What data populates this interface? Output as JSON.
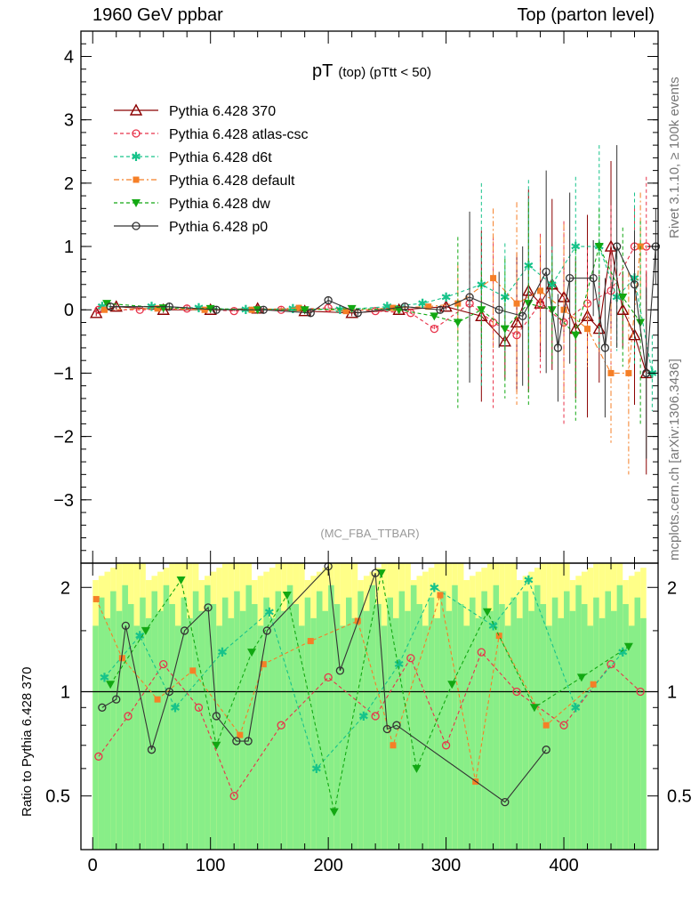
{
  "header": {
    "left": "1960 GeV ppbar",
    "right": "Top (parton level)"
  },
  "side_labels": {
    "top": "Rivet 3.1.10, ≥ 100k events",
    "bottom": "mcplots.cern.ch [arXiv:1306.3436]"
  },
  "colors": {
    "p370": "#8b0000",
    "atlas": "#e8334a",
    "d6t": "#17c38a",
    "default": "#f57f27",
    "dw": "#12a812",
    "p0": "#333333",
    "band_outer": "#ffff88",
    "band_inner": "#88ee88"
  },
  "chart_data": [
    {
      "type": "scatter",
      "title_main": "pT",
      "title_sub": "(top) (pTtt < 50)",
      "watermark": "(MC_FBA_TTBAR)",
      "xlim": [
        -10,
        480
      ],
      "ylim": [
        -4,
        4.4
      ],
      "yticks": [
        -3,
        -2,
        -1,
        0,
        1,
        2,
        3,
        4
      ],
      "legend_position": "top-left",
      "series": [
        {
          "name": "Pythia 6.428 370",
          "key": "p370",
          "marker": "triangle-open",
          "dash": "none",
          "x": [
            3,
            20,
            60,
            100,
            140,
            180,
            220,
            260,
            300,
            330,
            350,
            360,
            370,
            380,
            390,
            400,
            410,
            420,
            430,
            440,
            450,
            460,
            470
          ],
          "y": [
            -0.05,
            0.05,
            0.0,
            0.0,
            0.02,
            -0.02,
            -0.05,
            0.0,
            0.05,
            -0.1,
            -0.5,
            -0.2,
            0.3,
            0.1,
            0.4,
            0.2,
            -0.3,
            -0.1,
            -0.3,
            1.0,
            0.0,
            -0.4,
            -1.0
          ]
        },
        {
          "name": "Pythia 6.428 atlas-csc",
          "key": "atlas",
          "marker": "circle-open",
          "dash": "4,3",
          "x": [
            5,
            40,
            80,
            120,
            160,
            200,
            240,
            270,
            290,
            320,
            340,
            360,
            380,
            400,
            420,
            440,
            460,
            470
          ],
          "y": [
            0.0,
            0.0,
            0.02,
            -0.02,
            0.0,
            0.03,
            -0.02,
            -0.05,
            -0.3,
            0.1,
            -0.2,
            -0.4,
            0.1,
            -0.2,
            0.1,
            0.3,
            1.0,
            1.0
          ]
        },
        {
          "name": "Pythia 6.428 d6t",
          "key": "d6t",
          "marker": "star",
          "dash": "4,3",
          "x": [
            8,
            50,
            90,
            130,
            170,
            210,
            250,
            280,
            300,
            330,
            350,
            370,
            390,
            410,
            430,
            445,
            460,
            475
          ],
          "y": [
            0.05,
            0.05,
            0.03,
            0.0,
            0.02,
            0.0,
            0.05,
            0.1,
            0.2,
            0.4,
            0.2,
            0.7,
            0.4,
            1.0,
            1.0,
            0.2,
            0.5,
            -1.0
          ]
        },
        {
          "name": "Pythia 6.428 default",
          "key": "default",
          "marker": "square",
          "dash": "6,3,2,3",
          "x": [
            10,
            55,
            95,
            135,
            175,
            215,
            255,
            285,
            310,
            340,
            360,
            380,
            400,
            420,
            440,
            455,
            465
          ],
          "y": [
            0.0,
            0.02,
            0.0,
            0.0,
            0.03,
            -0.02,
            0.03,
            0.05,
            0.1,
            0.5,
            0.1,
            0.3,
            0.0,
            -0.3,
            -1.0,
            -1.0,
            1.0
          ]
        },
        {
          "name": "Pythia 6.428 dw",
          "key": "dw",
          "marker": "triangle-down",
          "dash": "4,3",
          "x": [
            12,
            60,
            100,
            140,
            180,
            220,
            260,
            290,
            310,
            330,
            350,
            370,
            390,
            410,
            430,
            450,
            465
          ],
          "y": [
            0.1,
            0.03,
            0.02,
            0.0,
            0.0,
            0.02,
            0.0,
            -0.1,
            -0.2,
            0.0,
            -0.3,
            0.1,
            0.0,
            -0.4,
            1.0,
            0.2,
            -0.2
          ]
        },
        {
          "name": "Pythia 6.428 p0",
          "key": "p0",
          "marker": "circle-open",
          "dash": "none",
          "x": [
            15,
            65,
            105,
            145,
            185,
            200,
            225,
            265,
            295,
            320,
            345,
            365,
            385,
            395,
            405,
            425,
            435,
            445,
            460,
            470,
            478
          ],
          "y": [
            0.05,
            0.05,
            0.0,
            0.0,
            -0.05,
            0.15,
            -0.05,
            0.05,
            0.0,
            0.2,
            0.0,
            -0.1,
            0.6,
            -0.6,
            0.5,
            0.5,
            -0.6,
            1.0,
            0.4,
            -1.0,
            1.0
          ]
        }
      ]
    },
    {
      "type": "scatter",
      "ylabel": "Ratio to Pythia 6.428 370",
      "xlim": [
        -10,
        480
      ],
      "ylim": [
        0.35,
        2.35
      ],
      "yticks": [
        0.5,
        1,
        2
      ],
      "ytick_labels": [
        "0.5",
        "1",
        "2"
      ],
      "xticks": [
        0,
        100,
        200,
        300,
        400
      ],
      "xtick_labels": [
        "0",
        "100",
        "200",
        "300",
        "400"
      ],
      "reference_line": 1,
      "series": [
        {
          "name": "Pythia 6.428 atlas-csc",
          "key": "atlas",
          "x": [
            5,
            30,
            60,
            90,
            120,
            160,
            200,
            240,
            270,
            300,
            330,
            360,
            400,
            440,
            465
          ],
          "y": [
            0.65,
            0.85,
            1.2,
            0.9,
            0.5,
            0.8,
            1.1,
            0.85,
            1.25,
            0.7,
            1.3,
            1.0,
            0.8,
            1.2,
            1.0
          ]
        },
        {
          "name": "Pythia 6.428 d6t",
          "key": "d6t",
          "x": [
            10,
            40,
            70,
            110,
            150,
            190,
            230,
            260,
            290,
            340,
            370,
            410,
            450
          ],
          "y": [
            1.1,
            1.45,
            0.9,
            1.3,
            1.7,
            0.6,
            0.85,
            1.2,
            2.0,
            1.55,
            2.1,
            0.9,
            1.3
          ]
        },
        {
          "name": "Pythia 6.428 default",
          "key": "default",
          "x": [
            3,
            25,
            55,
            85,
            125,
            145,
            185,
            225,
            255,
            295,
            325,
            345,
            385,
            425
          ],
          "y": [
            1.85,
            1.25,
            0.95,
            1.15,
            0.75,
            1.2,
            1.4,
            1.6,
            0.7,
            1.9,
            0.55,
            1.45,
            0.8,
            1.05
          ]
        },
        {
          "name": "Pythia 6.428 dw",
          "key": "dw",
          "x": [
            15,
            45,
            75,
            105,
            135,
            165,
            205,
            245,
            275,
            305,
            335,
            375,
            415,
            455
          ],
          "y": [
            1.05,
            1.5,
            2.1,
            0.7,
            1.3,
            1.9,
            0.45,
            2.2,
            0.6,
            1.05,
            1.7,
            0.9,
            1.1,
            1.35
          ]
        },
        {
          "name": "Pythia 6.428 p0",
          "key": "p0",
          "x": [
            8,
            20,
            28,
            50,
            65,
            78,
            98,
            105,
            122,
            132,
            148,
            200,
            210,
            240,
            250,
            258,
            350,
            385
          ],
          "y": [
            0.9,
            0.95,
            1.55,
            0.68,
            1.0,
            1.5,
            1.75,
            0.85,
            0.72,
            0.72,
            1.5,
            2.3,
            1.15,
            2.2,
            0.78,
            0.8,
            0.48,
            0.68
          ]
        }
      ]
    }
  ]
}
